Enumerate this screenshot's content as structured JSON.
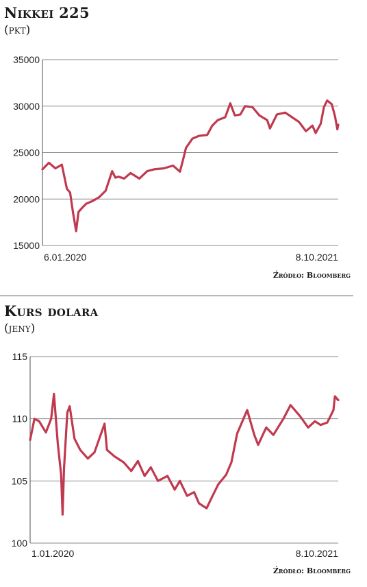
{
  "charts": [
    {
      "title": "Nikkei 225",
      "unit": "(pkt)",
      "source": "Źródło: Bloomberg"
    },
    {
      "title": "Kurs dolara",
      "unit": "(jeny)",
      "source": "Źródło: Bloomberg"
    }
  ],
  "chart_data": [
    {
      "type": "line",
      "title": "Nikkei 225",
      "ylabel": "(pkt)",
      "ylim": [
        15000,
        35000
      ],
      "yticks": [
        15000,
        20000,
        25000,
        30000,
        35000
      ],
      "ytick_labels": [
        "15000",
        "20000",
        "25000",
        "30000",
        "35000"
      ],
      "xlim": [
        "2020-01-06",
        "2021-10-08"
      ],
      "xtick_labels": [
        "6.01.2020",
        "8.10.2021"
      ],
      "grid": true,
      "color": "#c0394f",
      "series": [
        {
          "x": [
            "2020-01-06",
            "2020-01-20",
            "2020-02-03",
            "2020-02-17",
            "2020-02-28",
            "2020-03-06",
            "2020-03-12",
            "2020-03-19",
            "2020-03-24",
            "2020-03-31",
            "2020-04-10",
            "2020-04-24",
            "2020-05-08",
            "2020-05-22",
            "2020-06-05",
            "2020-06-12",
            "2020-06-19",
            "2020-07-01",
            "2020-07-15",
            "2020-08-03",
            "2020-08-20",
            "2020-09-04",
            "2020-09-25",
            "2020-10-15",
            "2020-10-30",
            "2020-11-06",
            "2020-11-12",
            "2020-11-26",
            "2020-12-10",
            "2020-12-28",
            "2021-01-08",
            "2021-01-20",
            "2021-02-05",
            "2021-02-16",
            "2021-02-26",
            "2021-03-10",
            "2021-03-20",
            "2021-04-05",
            "2021-04-20",
            "2021-05-07",
            "2021-05-13",
            "2021-05-28",
            "2021-06-15",
            "2021-06-30",
            "2021-07-15",
            "2021-07-30",
            "2021-08-13",
            "2021-08-20",
            "2021-08-31",
            "2021-09-07",
            "2021-09-14",
            "2021-09-24",
            "2021-10-01",
            "2021-10-06",
            "2021-10-08"
          ],
          "y": [
            23200,
            23900,
            23300,
            23700,
            21100,
            20700,
            18600,
            16550,
            18600,
            19000,
            19500,
            19800,
            20200,
            20900,
            23000,
            22300,
            22400,
            22200,
            22800,
            22200,
            23000,
            23200,
            23300,
            23600,
            22950,
            24300,
            25500,
            26500,
            26800,
            26900,
            27900,
            28500,
            28800,
            30300,
            29000,
            29100,
            30000,
            29900,
            29000,
            28500,
            27600,
            29100,
            29300,
            28800,
            28300,
            27300,
            27900,
            27100,
            28100,
            29900,
            30600,
            30200,
            28900,
            27500,
            28000
          ]
        }
      ]
    },
    {
      "type": "line",
      "title": "Kurs dolara",
      "ylabel": "(jeny)",
      "ylim": [
        100,
        115
      ],
      "yticks": [
        100,
        105,
        110,
        115
      ],
      "ytick_labels": [
        "100",
        "105",
        "110",
        "115"
      ],
      "xlim": [
        "2020-01-01",
        "2021-10-08"
      ],
      "xtick_labels": [
        "1.01.2020",
        "8.10.2021"
      ],
      "grid": true,
      "color": "#c0394f",
      "series": [
        {
          "x": [
            "2020-01-01",
            "2020-01-10",
            "2020-01-20",
            "2020-02-03",
            "2020-02-14",
            "2020-02-20",
            "2020-02-28",
            "2020-03-06",
            "2020-03-09",
            "2020-03-12",
            "2020-03-19",
            "2020-03-24",
            "2020-04-03",
            "2020-04-15",
            "2020-05-01",
            "2020-05-15",
            "2020-06-05",
            "2020-06-10",
            "2020-06-25",
            "2020-07-15",
            "2020-07-31",
            "2020-08-14",
            "2020-08-28",
            "2020-09-10",
            "2020-09-25",
            "2020-10-15",
            "2020-10-30",
            "2020-11-10",
            "2020-11-25",
            "2020-12-10",
            "2020-12-20",
            "2021-01-05",
            "2021-01-15",
            "2021-01-29",
            "2021-02-15",
            "2021-02-26",
            "2021-03-10",
            "2021-03-31",
            "2021-04-15",
            "2021-04-23",
            "2021-05-10",
            "2021-05-25",
            "2021-06-15",
            "2021-06-30",
            "2021-07-20",
            "2021-08-06",
            "2021-08-20",
            "2021-09-01",
            "2021-09-15",
            "2021-09-28",
            "2021-10-01",
            "2021-10-08"
          ],
          "y": [
            108.3,
            110.0,
            109.8,
            108.9,
            110.0,
            112.0,
            108.0,
            105.5,
            102.3,
            106.0,
            110.5,
            111.0,
            108.4,
            107.5,
            106.8,
            107.3,
            109.6,
            107.5,
            107.0,
            106.5,
            105.8,
            106.6,
            105.4,
            106.1,
            105.0,
            105.4,
            104.3,
            105.0,
            103.8,
            104.1,
            103.2,
            102.8,
            103.6,
            104.7,
            105.5,
            106.5,
            108.8,
            110.7,
            108.7,
            107.9,
            109.3,
            108.7,
            110.0,
            111.1,
            110.2,
            109.3,
            109.8,
            109.5,
            109.7,
            110.7,
            111.8,
            111.5
          ]
        }
      ]
    }
  ]
}
